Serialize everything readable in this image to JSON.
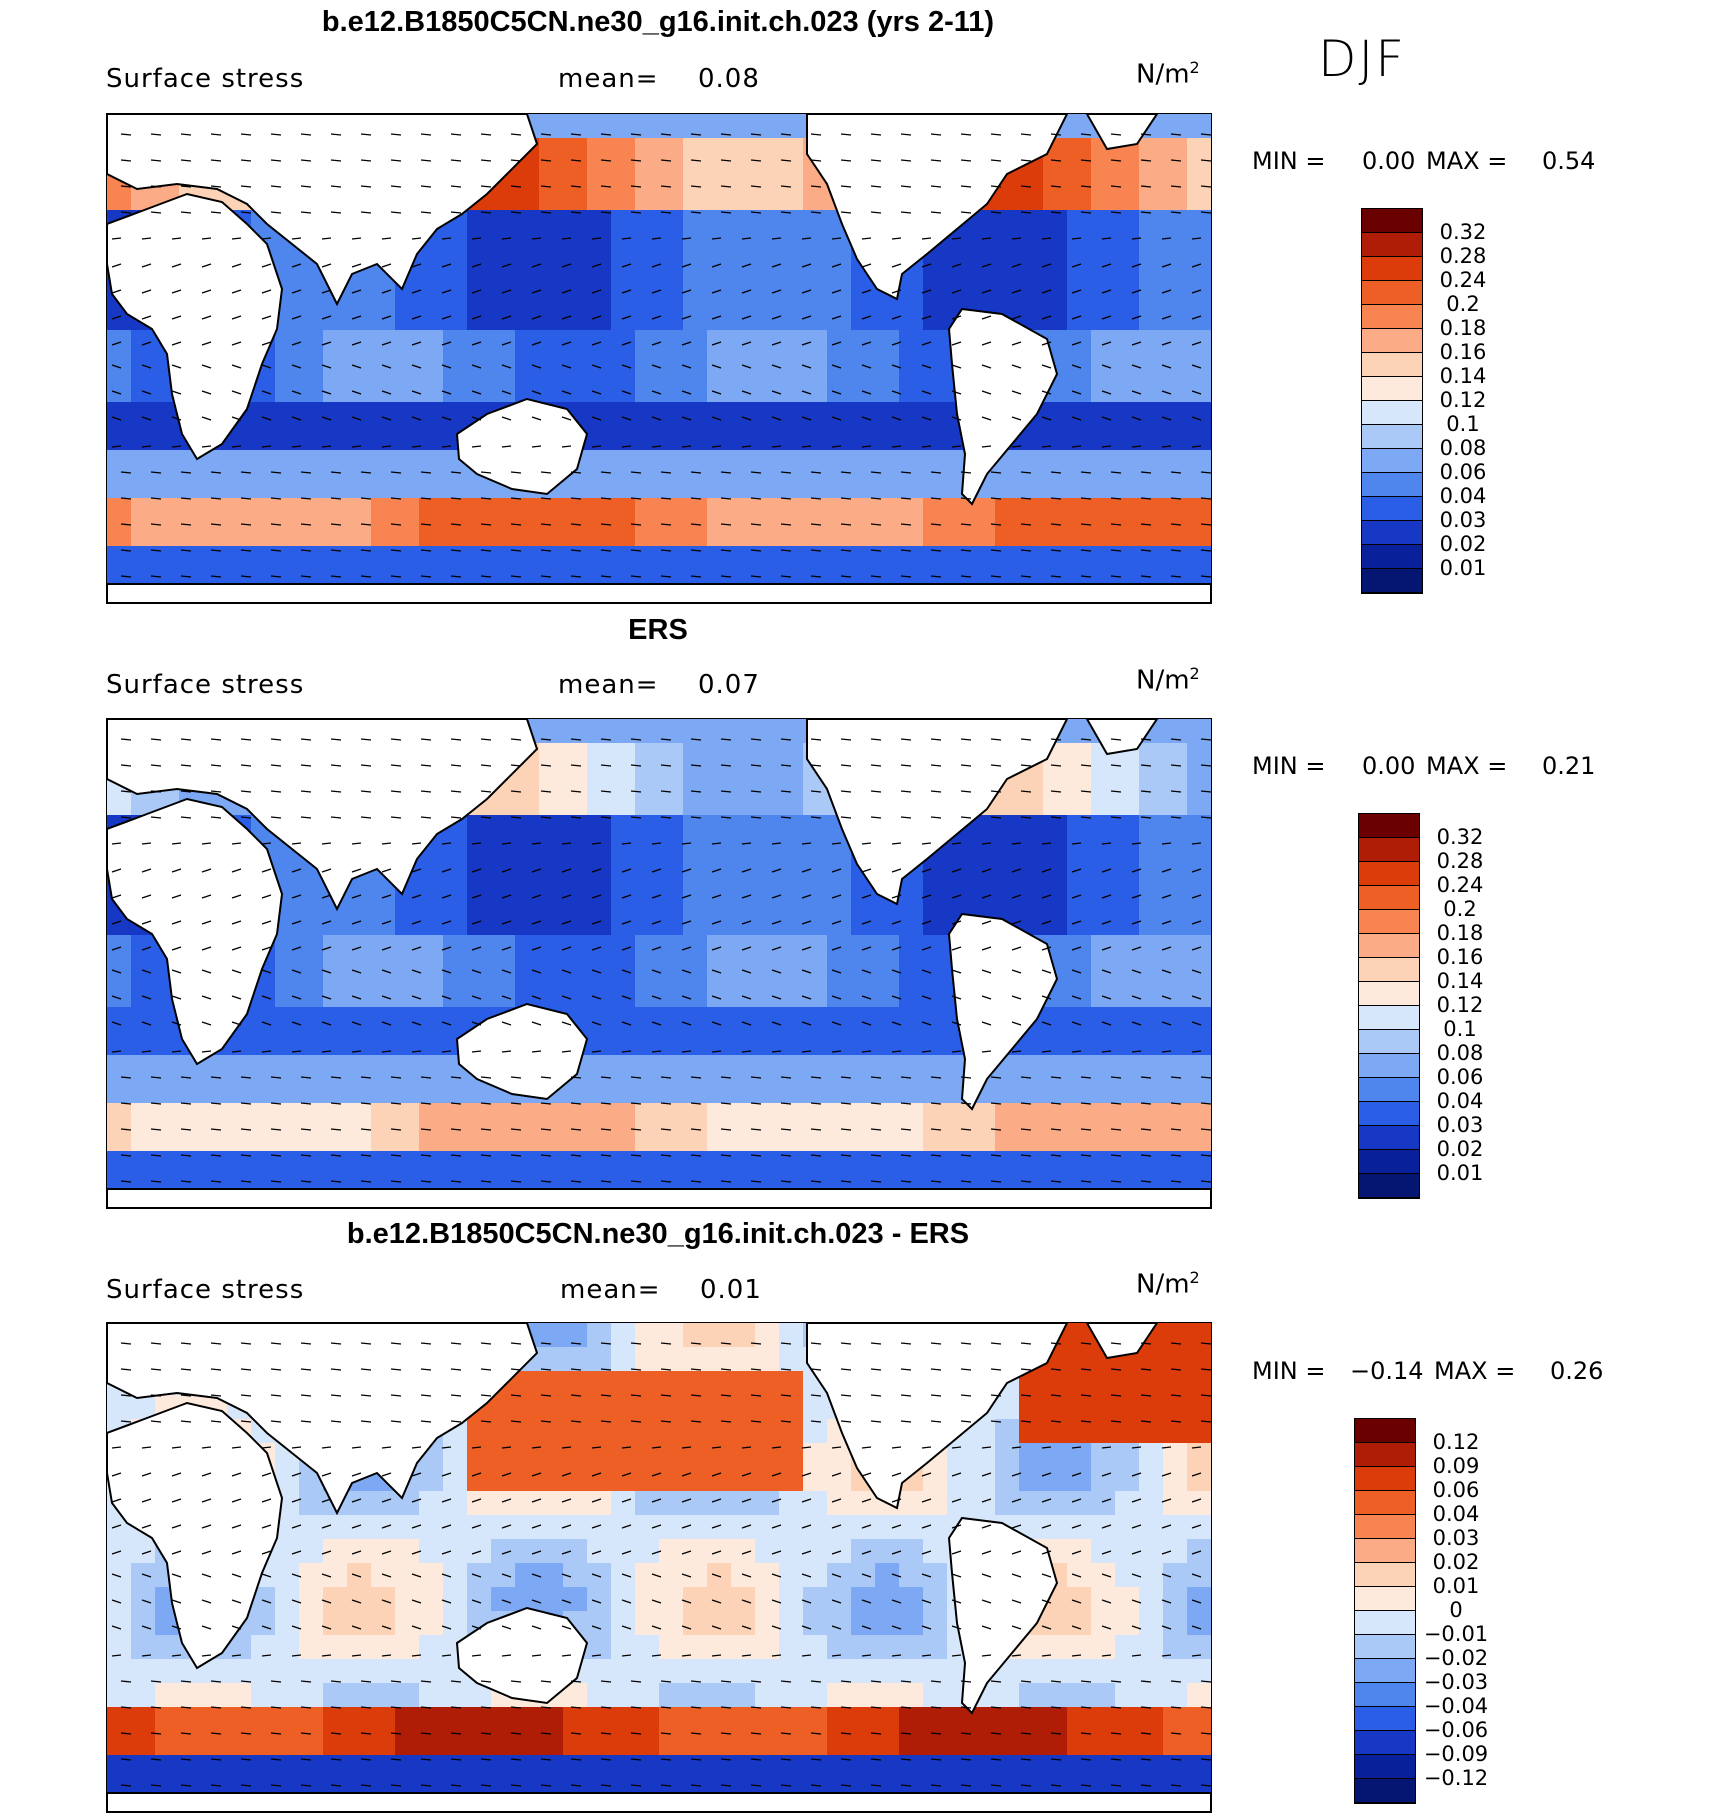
{
  "season": "DJF",
  "panels": [
    {
      "title": "b.e12.B1850C5CN.ne30_g16.init.ch.023 (yrs 2-11)",
      "left_label": "Surface stress",
      "mean_label": "mean=",
      "mean_value": "0.08",
      "units_base": "N/m",
      "units_sup": "2",
      "min_label": "MIN =",
      "min_value": "0.00",
      "max_label": "MAX =",
      "max_value": "0.54",
      "levels": [
        "0.32",
        "0.28",
        "0.24",
        "0.2",
        "0.18",
        "0.16",
        "0.14",
        "0.12",
        "0.1",
        "0.08",
        "0.06",
        "0.04",
        "0.03",
        "0.02",
        "0.01"
      ],
      "palette": [
        "#6b0000",
        "#b01d06",
        "#dc3b0a",
        "#ee5f26",
        "#f78451",
        "#fbac86",
        "#fdd3b7",
        "#feeadc",
        "#d7e7fb",
        "#abc9f7",
        "#7da8f3",
        "#4e86ee",
        "#2a5ee6",
        "#1638c4",
        "#08209a",
        "#041572"
      ]
    },
    {
      "title": "ERS",
      "left_label": "Surface stress",
      "mean_label": "mean=",
      "mean_value": "0.07",
      "units_base": "N/m",
      "units_sup": "2",
      "min_label": "MIN =",
      "min_value": "0.00",
      "max_label": "MAX =",
      "max_value": "0.21",
      "levels": [
        "0.32",
        "0.28",
        "0.24",
        "0.2",
        "0.18",
        "0.16",
        "0.14",
        "0.12",
        "0.1",
        "0.08",
        "0.06",
        "0.04",
        "0.03",
        "0.02",
        "0.01"
      ],
      "palette": [
        "#6b0000",
        "#b01d06",
        "#dc3b0a",
        "#ee5f26",
        "#f78451",
        "#fbac86",
        "#fdd3b7",
        "#feeadc",
        "#d7e7fb",
        "#abc9f7",
        "#7da8f3",
        "#4e86ee",
        "#2a5ee6",
        "#1638c4",
        "#08209a",
        "#041572"
      ]
    },
    {
      "title": "b.e12.B1850C5CN.ne30_g16.init.ch.023 - ERS",
      "left_label": "Surface stress",
      "mean_label": "mean=",
      "mean_value": "0.01",
      "units_base": "N/m",
      "units_sup": "2",
      "min_label": "MIN =",
      "min_value": "−0.14",
      "max_label": "MAX =",
      "max_value": "0.26",
      "levels": [
        "0.12",
        "0.09",
        "0.06",
        "0.04",
        "0.03",
        "0.02",
        "0.01",
        "0",
        "−0.01",
        "−0.02",
        "−0.03",
        "−0.04",
        "−0.06",
        "−0.09",
        "−0.12"
      ],
      "palette": [
        "#6b0000",
        "#b01d06",
        "#dc3b0a",
        "#ee5f26",
        "#f78451",
        "#fbac86",
        "#fdd3b7",
        "#feeadc",
        "#d7e7fb",
        "#abc9f7",
        "#7da8f3",
        "#4e86ee",
        "#2a5ee6",
        "#1638c4",
        "#08209a",
        "#041572"
      ]
    }
  ]
}
